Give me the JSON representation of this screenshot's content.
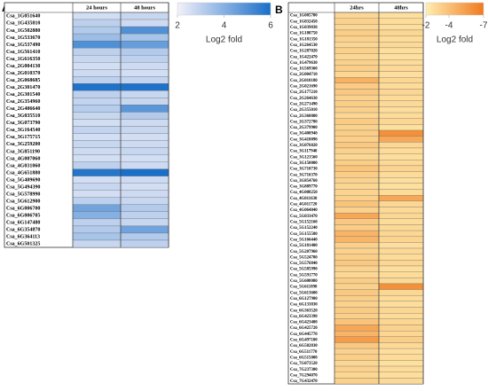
{
  "chart_data": [
    {
      "type": "heatmap",
      "panel": "A",
      "columns": [
        "24 hours",
        "48 hours"
      ],
      "rows": [
        "Csa_1G051640",
        "Csa_1G435810",
        "Csa_1G502880",
        "Csa_1G533670",
        "Csa_1G537490",
        "Csa_1G561410",
        "Csa_1G616350",
        "Csa_2G004130",
        "Csa_2G010370",
        "Csa_2G068685",
        "Csa_2G301470",
        "Csa_2G301540",
        "Csa_2G354960",
        "Csa_2G406640",
        "Csa_3G035510",
        "Csa_3G073790",
        "Csa_3G164540",
        "Csa_3G175715",
        "Csa_3G259200",
        "Csa_3G851190",
        "Csa_4G007060",
        "Csa_4G031060",
        "Csa_4G651880",
        "Csa_5G409690",
        "Csa_5G494390",
        "Csa_5G578990",
        "Csa_5G612900",
        "Csa_6G006700",
        "Csa_6G006705",
        "Csa_6G147480",
        "Csa_6G354870",
        "Csa_6G364113",
        "Csa_6G501325"
      ],
      "values": [
        [
          2.6,
          2.8
        ],
        [
          3.0,
          2.7
        ],
        [
          3.2,
          5.0
        ],
        [
          3.6,
          3.4
        ],
        [
          5.0,
          4.6
        ],
        [
          3.0,
          3.2
        ],
        [
          2.8,
          3.0
        ],
        [
          2.6,
          2.7
        ],
        [
          2.7,
          2.6
        ],
        [
          3.0,
          2.9
        ],
        [
          5.9,
          5.9
        ],
        [
          3.0,
          2.8
        ],
        [
          2.9,
          2.8
        ],
        [
          3.1,
          4.8
        ],
        [
          2.8,
          3.2
        ],
        [
          2.6,
          2.7
        ],
        [
          2.9,
          2.8
        ],
        [
          2.6,
          2.6
        ],
        [
          2.8,
          2.7
        ],
        [
          2.7,
          2.8
        ],
        [
          2.6,
          2.6
        ],
        [
          3.0,
          2.7
        ],
        [
          5.8,
          6.0
        ],
        [
          2.6,
          2.7
        ],
        [
          2.8,
          2.6
        ],
        [
          2.6,
          2.7
        ],
        [
          3.0,
          2.8
        ],
        [
          4.4,
          3.2
        ],
        [
          4.0,
          3.0
        ],
        [
          3.0,
          2.8
        ],
        [
          3.2,
          4.4
        ],
        [
          3.4,
          3.2
        ],
        [
          2.8,
          3.0
        ]
      ],
      "clim": [
        2,
        6
      ],
      "colors": [
        "#f3f1fa",
        "#1a6fc9"
      ],
      "cticks": [
        2,
        4,
        6
      ],
      "clabel": "Log2 fold"
    },
    {
      "type": "heatmap",
      "panel": "B",
      "columns": [
        "24hrs",
        "48hrs"
      ],
      "rows": [
        "Csa_1G005700",
        "Csa_1G032450",
        "Csa_1G039830",
        "Csa_1G180750",
        "Csa_1G181350",
        "Csa_1G264530",
        "Csa_1G287020",
        "Csa_1G422470",
        "Csa_1G479630",
        "Csa_1G569360",
        "Csa_2G004710",
        "Csa_2G010180",
        "Csa_2G021690",
        "Csa_2G177210",
        "Csa_2G264630",
        "Csa_2G271490",
        "Csa_2G355010",
        "Csa_2G360800",
        "Csa_2G372780",
        "Csa_2G379900",
        "Csa_3G408940",
        "Csa_3G418090",
        "Csa_3G076020",
        "Csa_3G117940",
        "Csa_3G121560",
        "Csa_3G150000",
        "Csa_3G710730",
        "Csa_3G716370",
        "Csa_3G854760",
        "Csa_3G889770",
        "Csa_4G008250",
        "Csa_4G011630",
        "Csa_4G011720",
        "Csa_4G064040",
        "Csa_5G033470",
        "Csa_5G152160",
        "Csa_5G152240",
        "Csa_5G155580",
        "Csa_5G166440",
        "Csa_5G181400",
        "Csa_5G207960",
        "Csa_5G524780",
        "Csa_5G576840",
        "Csa_5G585990",
        "Csa_5G591770",
        "Csa_5G608080",
        "Csa_5G611890",
        "Csa_5G613600",
        "Csa_6G127980",
        "Csa_6G133830",
        "Csa_6G363520",
        "Csa_6G423390",
        "Csa_6G423400",
        "Csa_6G425720",
        "Csa_6G445770",
        "Csa_6G497100",
        "Csa_6G502830",
        "Csa_6G511770",
        "Csa_6G515000",
        "Csa_7G073520",
        "Csa_7G237300",
        "Csa_7G294070",
        "Csa_7G432470"
      ],
      "values": [
        [
          -3.0,
          -2.6
        ],
        [
          -3.2,
          -2.8
        ],
        [
          -3.0,
          -2.7
        ],
        [
          -3.4,
          -3.0
        ],
        [
          -3.2,
          -2.8
        ],
        [
          -3.0,
          -2.9
        ],
        [
          -3.3,
          -2.7
        ],
        [
          -3.0,
          -2.6
        ],
        [
          -3.2,
          -2.8
        ],
        [
          -3.4,
          -2.9
        ],
        [
          -3.0,
          -2.7
        ],
        [
          -4.6,
          -3.0
        ],
        [
          -3.5,
          -2.8
        ],
        [
          -3.6,
          -3.0
        ],
        [
          -3.2,
          -2.8
        ],
        [
          -3.4,
          -2.9
        ],
        [
          -3.3,
          -2.7
        ],
        [
          -3.0,
          -2.8
        ],
        [
          -3.5,
          -3.0
        ],
        [
          -3.2,
          -2.6
        ],
        [
          -3.4,
          -6.0
        ],
        [
          -3.3,
          -5.0
        ],
        [
          -3.6,
          -3.0
        ],
        [
          -3.2,
          -2.8
        ],
        [
          -3.0,
          -2.7
        ],
        [
          -3.4,
          -2.9
        ],
        [
          -3.8,
          -3.1
        ],
        [
          -3.4,
          -2.8
        ],
        [
          -3.2,
          -2.7
        ],
        [
          -3.0,
          -2.6
        ],
        [
          -3.1,
          -2.8
        ],
        [
          -3.3,
          -5.0
        ],
        [
          -3.8,
          -3.0
        ],
        [
          -3.2,
          -2.9
        ],
        [
          -5.0,
          -3.0
        ],
        [
          -3.6,
          -2.8
        ],
        [
          -3.4,
          -2.9
        ],
        [
          -4.5,
          -3.0
        ],
        [
          -4.5,
          -3.1
        ],
        [
          -3.3,
          -2.7
        ],
        [
          -3.2,
          -2.9
        ],
        [
          -3.4,
          -2.8
        ],
        [
          -3.6,
          -3.0
        ],
        [
          -3.2,
          -2.7
        ],
        [
          -3.0,
          -2.8
        ],
        [
          -3.4,
          -2.9
        ],
        [
          -3.2,
          -6.0
        ],
        [
          -3.6,
          -3.0
        ],
        [
          -3.4,
          -2.8
        ],
        [
          -3.2,
          -2.7
        ],
        [
          -3.5,
          -3.0
        ],
        [
          -3.3,
          -2.8
        ],
        [
          -3.8,
          -3.0
        ],
        [
          -5.0,
          -3.2
        ],
        [
          -4.5,
          -3.0
        ],
        [
          -5.5,
          -3.4
        ],
        [
          -3.6,
          -2.9
        ],
        [
          -3.2,
          -2.7
        ],
        [
          -3.4,
          -2.8
        ],
        [
          -3.0,
          -2.6
        ],
        [
          -3.2,
          -2.8
        ],
        [
          -3.0,
          -2.7
        ],
        [
          -3.3,
          -2.9
        ]
      ],
      "clim": [
        -2,
        -7
      ],
      "colors": [
        "#ffeeb0",
        "#f07a1e"
      ],
      "cticks": [
        -2,
        -4,
        -7
      ],
      "clabel": "Log2 fold"
    }
  ]
}
